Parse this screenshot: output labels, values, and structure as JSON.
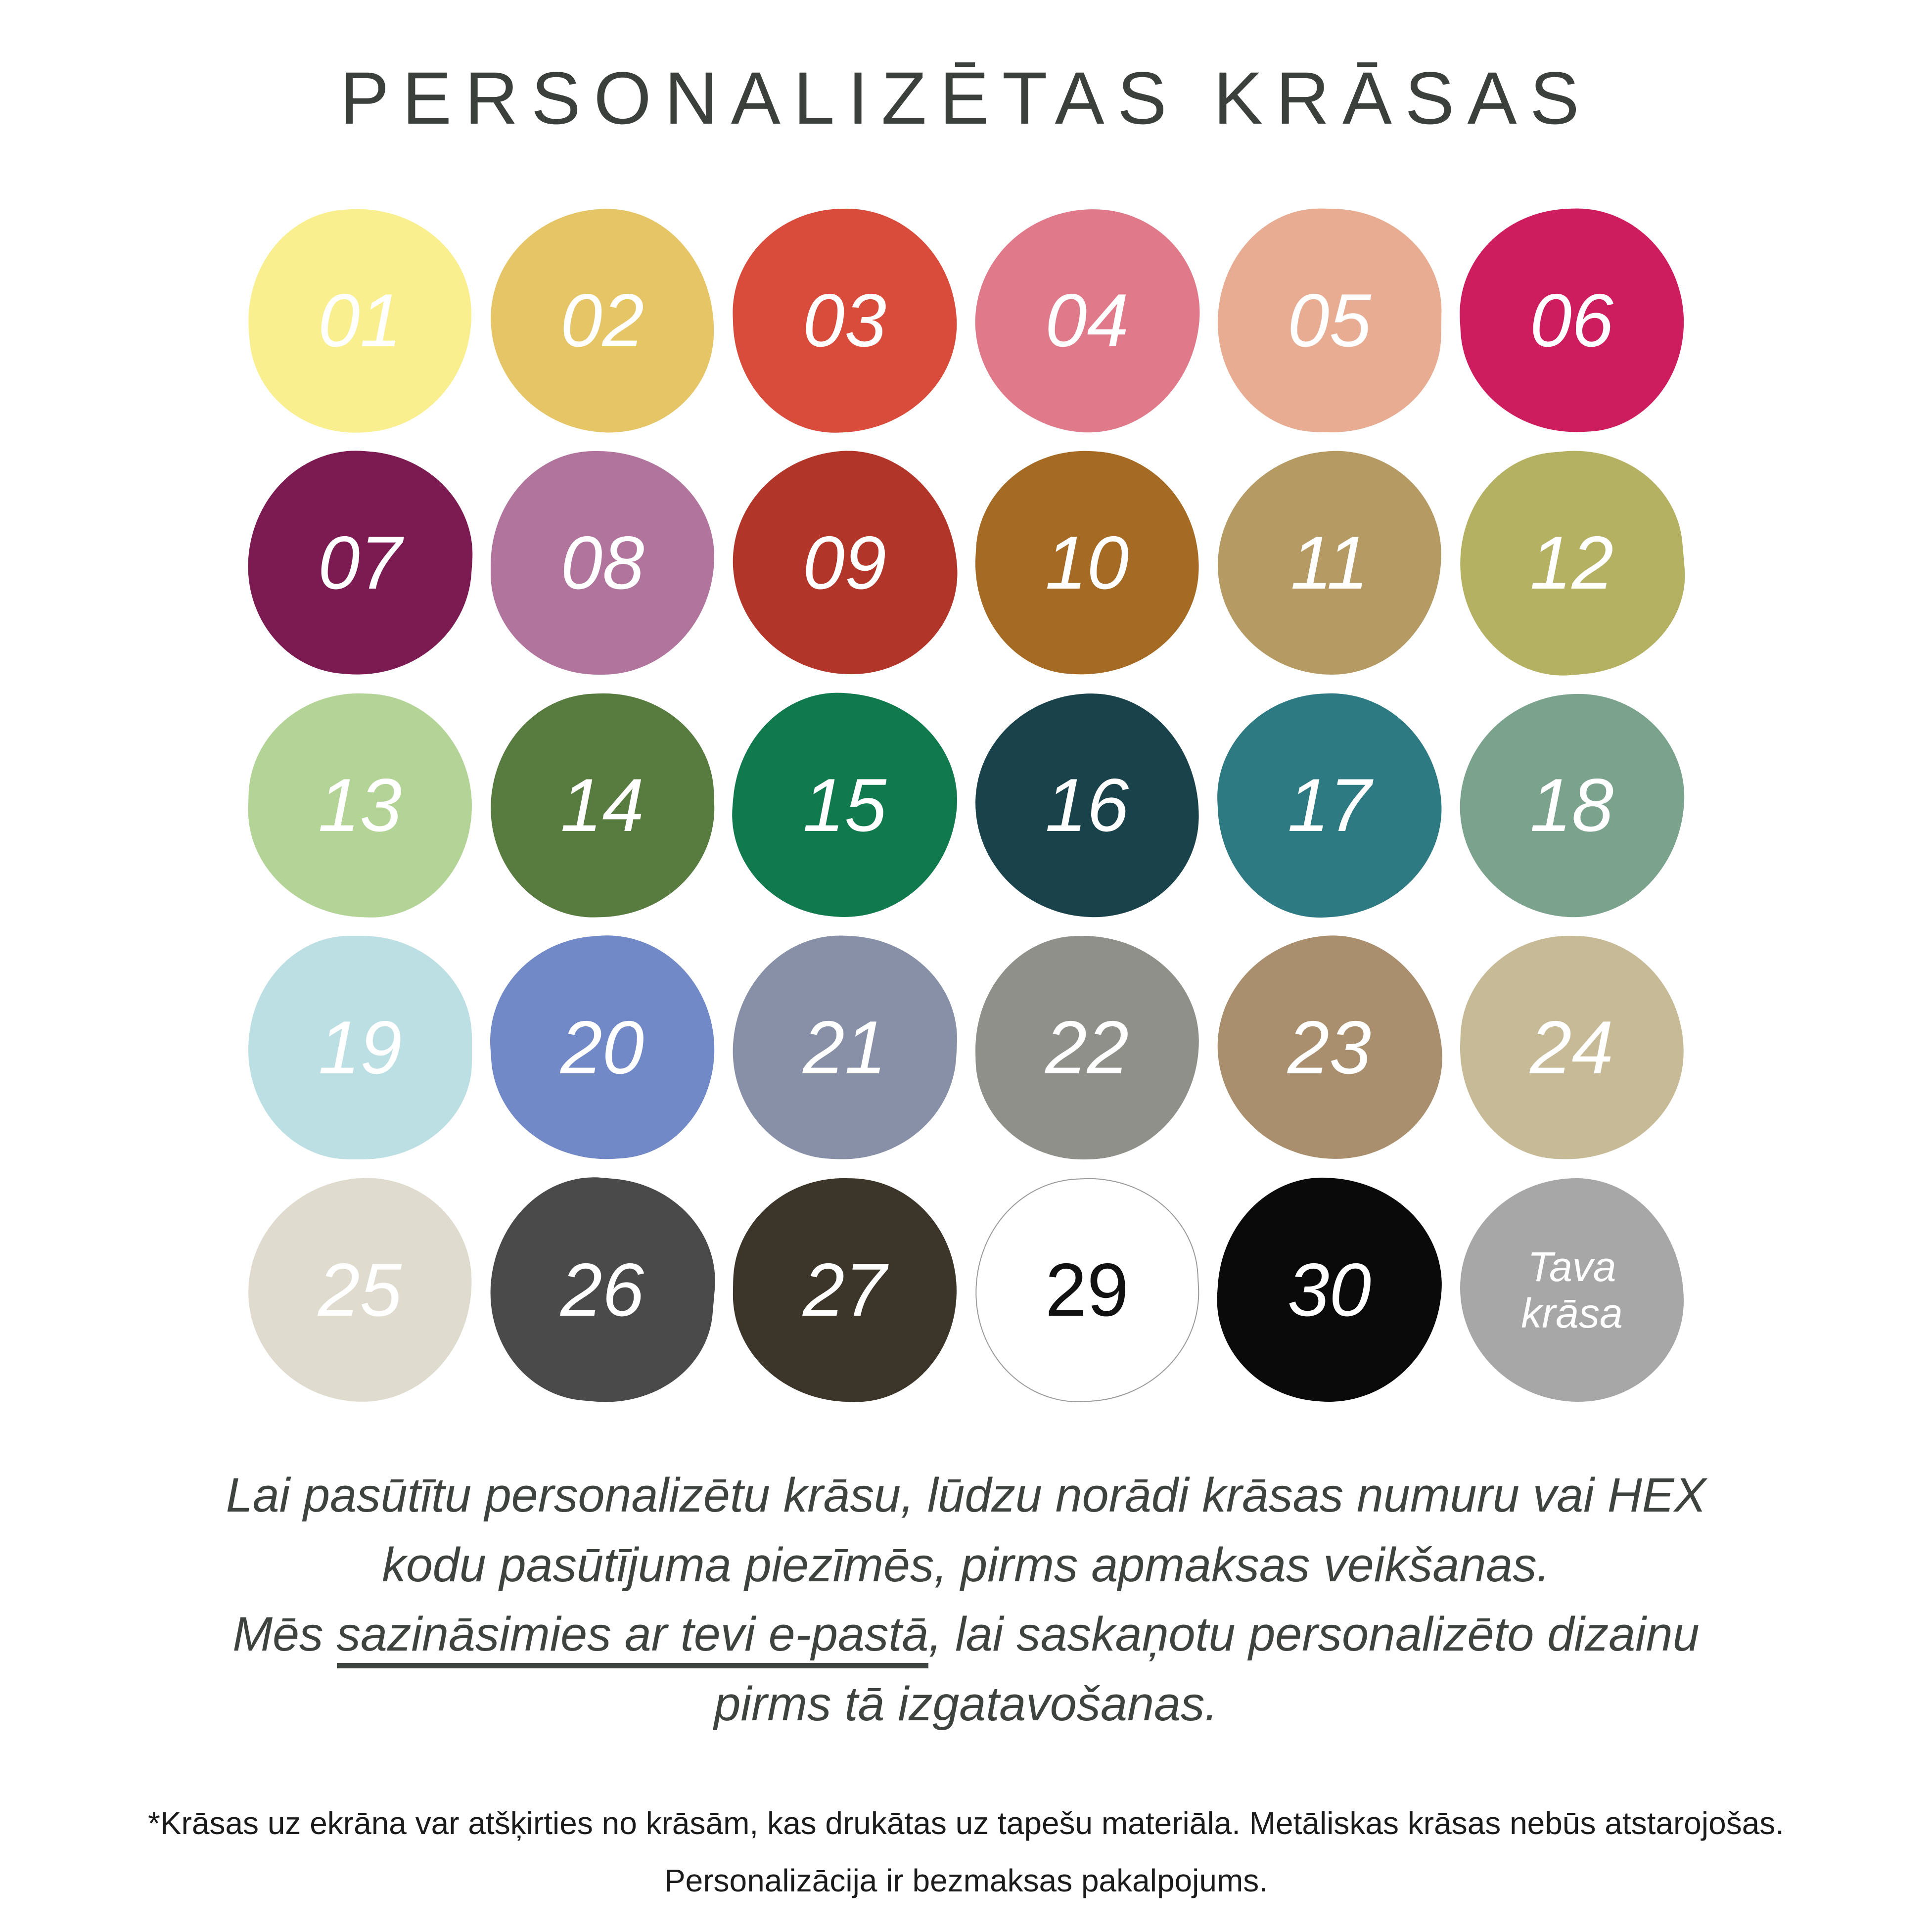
{
  "title": "PERSONALIZĒTAS KRĀSAS",
  "colors": {
    "background": "#ffffff",
    "title_text": "#3c403c",
    "paragraph_text": "#3f433f",
    "footer_text": "#1b1b1b",
    "swatch_29_outline": "#9a9a9a"
  },
  "swatches": [
    {
      "label": "01",
      "color": "#f9ef8e",
      "text": "#ffffff"
    },
    {
      "label": "02",
      "color": "#e6c566",
      "text": "#ffffff"
    },
    {
      "label": "03",
      "color": "#d94b3b",
      "text": "#ffffff"
    },
    {
      "label": "04",
      "color": "#e07a8a",
      "text": "#ffffff"
    },
    {
      "label": "05",
      "color": "#e7ac92",
      "text": "#ffffff"
    },
    {
      "label": "06",
      "color": "#ce1d5e",
      "text": "#ffffff"
    },
    {
      "label": "07",
      "color": "#7b1b52",
      "text": "#ffffff"
    },
    {
      "label": "08",
      "color": "#b1759d",
      "text": "#ffffff"
    },
    {
      "label": "09",
      "color": "#b23529",
      "text": "#ffffff"
    },
    {
      "label": "10",
      "color": "#a56a24",
      "text": "#ffffff"
    },
    {
      "label": "11",
      "color": "#b59a63",
      "text": "#ffffff"
    },
    {
      "label": "12",
      "color": "#b4b163",
      "text": "#ffffff"
    },
    {
      "label": "13",
      "color": "#b3d496",
      "text": "#ffffff"
    },
    {
      "label": "14",
      "color": "#587b40",
      "text": "#ffffff"
    },
    {
      "label": "15",
      "color": "#10794e",
      "text": "#ffffff"
    },
    {
      "label": "16",
      "color": "#1a424a",
      "text": "#ffffff"
    },
    {
      "label": "17",
      "color": "#2e7a82",
      "text": "#ffffff"
    },
    {
      "label": "18",
      "color": "#7aa28c",
      "text": "#ffffff"
    },
    {
      "label": "19",
      "color": "#bcdfe3",
      "text": "#ffffff"
    },
    {
      "label": "20",
      "color": "#7289c8",
      "text": "#ffffff"
    },
    {
      "label": "21",
      "color": "#8790a6",
      "text": "#ffffff"
    },
    {
      "label": "22",
      "color": "#8e9089",
      "text": "#ffffff"
    },
    {
      "label": "23",
      "color": "#a98f6d",
      "text": "#ffffff"
    },
    {
      "label": "24",
      "color": "#c7ba96",
      "text": "#ffffff"
    },
    {
      "label": "25",
      "color": "#dfdbce",
      "text": "#ffffff"
    },
    {
      "label": "26",
      "color": "#4a4a4a",
      "text": "#ffffff"
    },
    {
      "label": "27",
      "color": "#3b352a",
      "text": "#ffffff"
    },
    {
      "label": "29",
      "color": "#ffffff",
      "text": "#111111",
      "outlined": true,
      "upright": true
    },
    {
      "label": "30",
      "color": "#0a0a0a",
      "text": "#ffffff"
    },
    {
      "label": "Tava krāsa",
      "color": "#a7a7a7",
      "text": "#ffffff",
      "small": true
    }
  ],
  "paragraph": {
    "line1": "Lai pasūtītu personalizētu krāsu, lūdzu norādi krāsas numuru vai HEX",
    "line2": "kodu pasūtījuma piezīmēs, pirms apmaksas veikšanas.",
    "line3_prefix": "Mēs ",
    "line3_underlined": "sazināsimies ar tevi e-pastā",
    "line3_suffix": ", lai saskaņotu personalizēto dizainu",
    "line4": "pirms tā izgatavošanas."
  },
  "footer": {
    "line1": "*Krāsas uz ekrāna var atšķirties no krāsām, kas drukātas uz tapešu materiāla. Metāliskas krāsas nebūs atstarojošas.",
    "line2": "Personalizācija ir bezmaksas pakalpojums."
  }
}
